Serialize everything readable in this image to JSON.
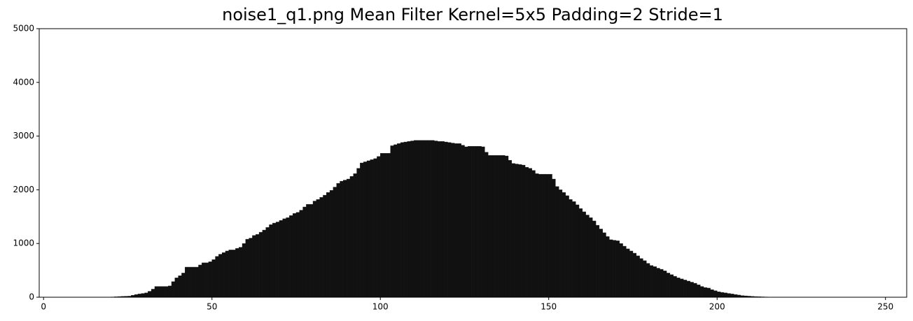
{
  "chart_data": {
    "type": "histogram",
    "title": "noise1_q1.png Mean Filter Kernel=5x5 Padding=2 Stride=1",
    "color": "#111111",
    "bins": [
      19,
      20,
      21,
      22,
      23,
      24,
      25,
      26,
      27,
      28,
      29,
      30,
      31,
      32,
      33,
      34,
      35,
      36,
      37,
      38,
      39,
      40,
      41,
      42,
      43,
      44,
      45,
      46,
      47,
      48,
      49,
      50,
      51,
      52,
      53,
      54,
      55,
      56,
      57,
      58,
      59,
      60,
      61,
      62,
      63,
      64,
      65,
      66,
      67,
      68,
      69,
      70,
      71,
      72,
      73,
      74,
      75,
      76,
      77,
      78,
      79,
      80,
      81,
      82,
      83,
      84,
      85,
      86,
      87,
      88,
      89,
      90,
      91,
      92,
      93,
      94,
      95,
      96,
      97,
      98,
      99,
      100,
      101,
      102,
      103,
      104,
      105,
      106,
      107,
      108,
      109,
      110,
      111,
      112,
      113,
      114,
      115,
      116,
      117,
      118,
      119,
      120,
      121,
      122,
      123,
      124,
      125,
      126,
      127,
      128,
      129,
      130,
      131,
      132,
      133,
      134,
      135,
      136,
      137,
      138,
      139,
      140,
      141,
      142,
      143,
      144,
      145,
      146,
      147,
      148,
      149,
      150,
      151,
      152,
      153,
      154,
      155,
      156,
      157,
      158,
      159,
      160,
      161,
      162,
      163,
      164,
      165,
      166,
      167,
      168,
      169,
      170,
      171,
      172,
      173,
      174,
      175,
      176,
      177,
      178,
      179,
      180,
      181,
      182,
      183,
      184,
      185,
      186,
      187,
      188,
      189,
      190,
      191,
      192,
      193,
      194,
      195,
      196,
      197,
      198,
      199,
      200,
      201,
      202,
      203,
      204,
      205,
      206,
      207,
      208,
      209,
      210,
      211,
      212,
      213,
      214,
      215,
      216
    ],
    "counts": [
      2,
      5,
      8,
      12,
      15,
      18,
      20,
      35,
      50,
      60,
      70,
      80,
      110,
      150,
      200,
      200,
      200,
      200,
      210,
      290,
      360,
      400,
      450,
      560,
      560,
      560,
      560,
      600,
      640,
      640,
      660,
      700,
      760,
      800,
      830,
      860,
      880,
      880,
      910,
      930,
      1000,
      1080,
      1100,
      1150,
      1170,
      1210,
      1250,
      1300,
      1350,
      1380,
      1400,
      1430,
      1460,
      1480,
      1520,
      1560,
      1580,
      1620,
      1680,
      1730,
      1730,
      1790,
      1820,
      1860,
      1900,
      1950,
      1990,
      2050,
      2120,
      2160,
      2180,
      2200,
      2250,
      2300,
      2400,
      2500,
      2520,
      2540,
      2560,
      2580,
      2620,
      2680,
      2680,
      2680,
      2820,
      2840,
      2860,
      2880,
      2890,
      2900,
      2910,
      2920,
      2920,
      2920,
      2920,
      2920,
      2920,
      2910,
      2900,
      2900,
      2890,
      2880,
      2870,
      2860,
      2860,
      2830,
      2800,
      2810,
      2810,
      2810,
      2810,
      2800,
      2700,
      2640,
      2640,
      2640,
      2640,
      2640,
      2630,
      2550,
      2490,
      2480,
      2470,
      2460,
      2420,
      2400,
      2360,
      2300,
      2290,
      2290,
      2290,
      2290,
      2200,
      2060,
      2000,
      1950,
      1890,
      1820,
      1780,
      1720,
      1650,
      1590,
      1530,
      1480,
      1420,
      1340,
      1270,
      1200,
      1130,
      1070,
      1060,
      1050,
      1000,
      950,
      900,
      860,
      820,
      770,
      720,
      680,
      630,
      590,
      570,
      540,
      520,
      490,
      450,
      420,
      390,
      360,
      340,
      320,
      300,
      280,
      260,
      230,
      200,
      180,
      170,
      140,
      120,
      100,
      90,
      80,
      70,
      60,
      50,
      40,
      30,
      25,
      20,
      15,
      12,
      10,
      7,
      5,
      3
    ],
    "xlim": [
      -1.3,
      256.3
    ],
    "xticks": [
      0,
      50,
      100,
      150,
      200,
      250
    ],
    "ylim": [
      0,
      5000
    ],
    "yticks": [
      0,
      1000,
      2000,
      3000,
      4000,
      5000
    ]
  }
}
